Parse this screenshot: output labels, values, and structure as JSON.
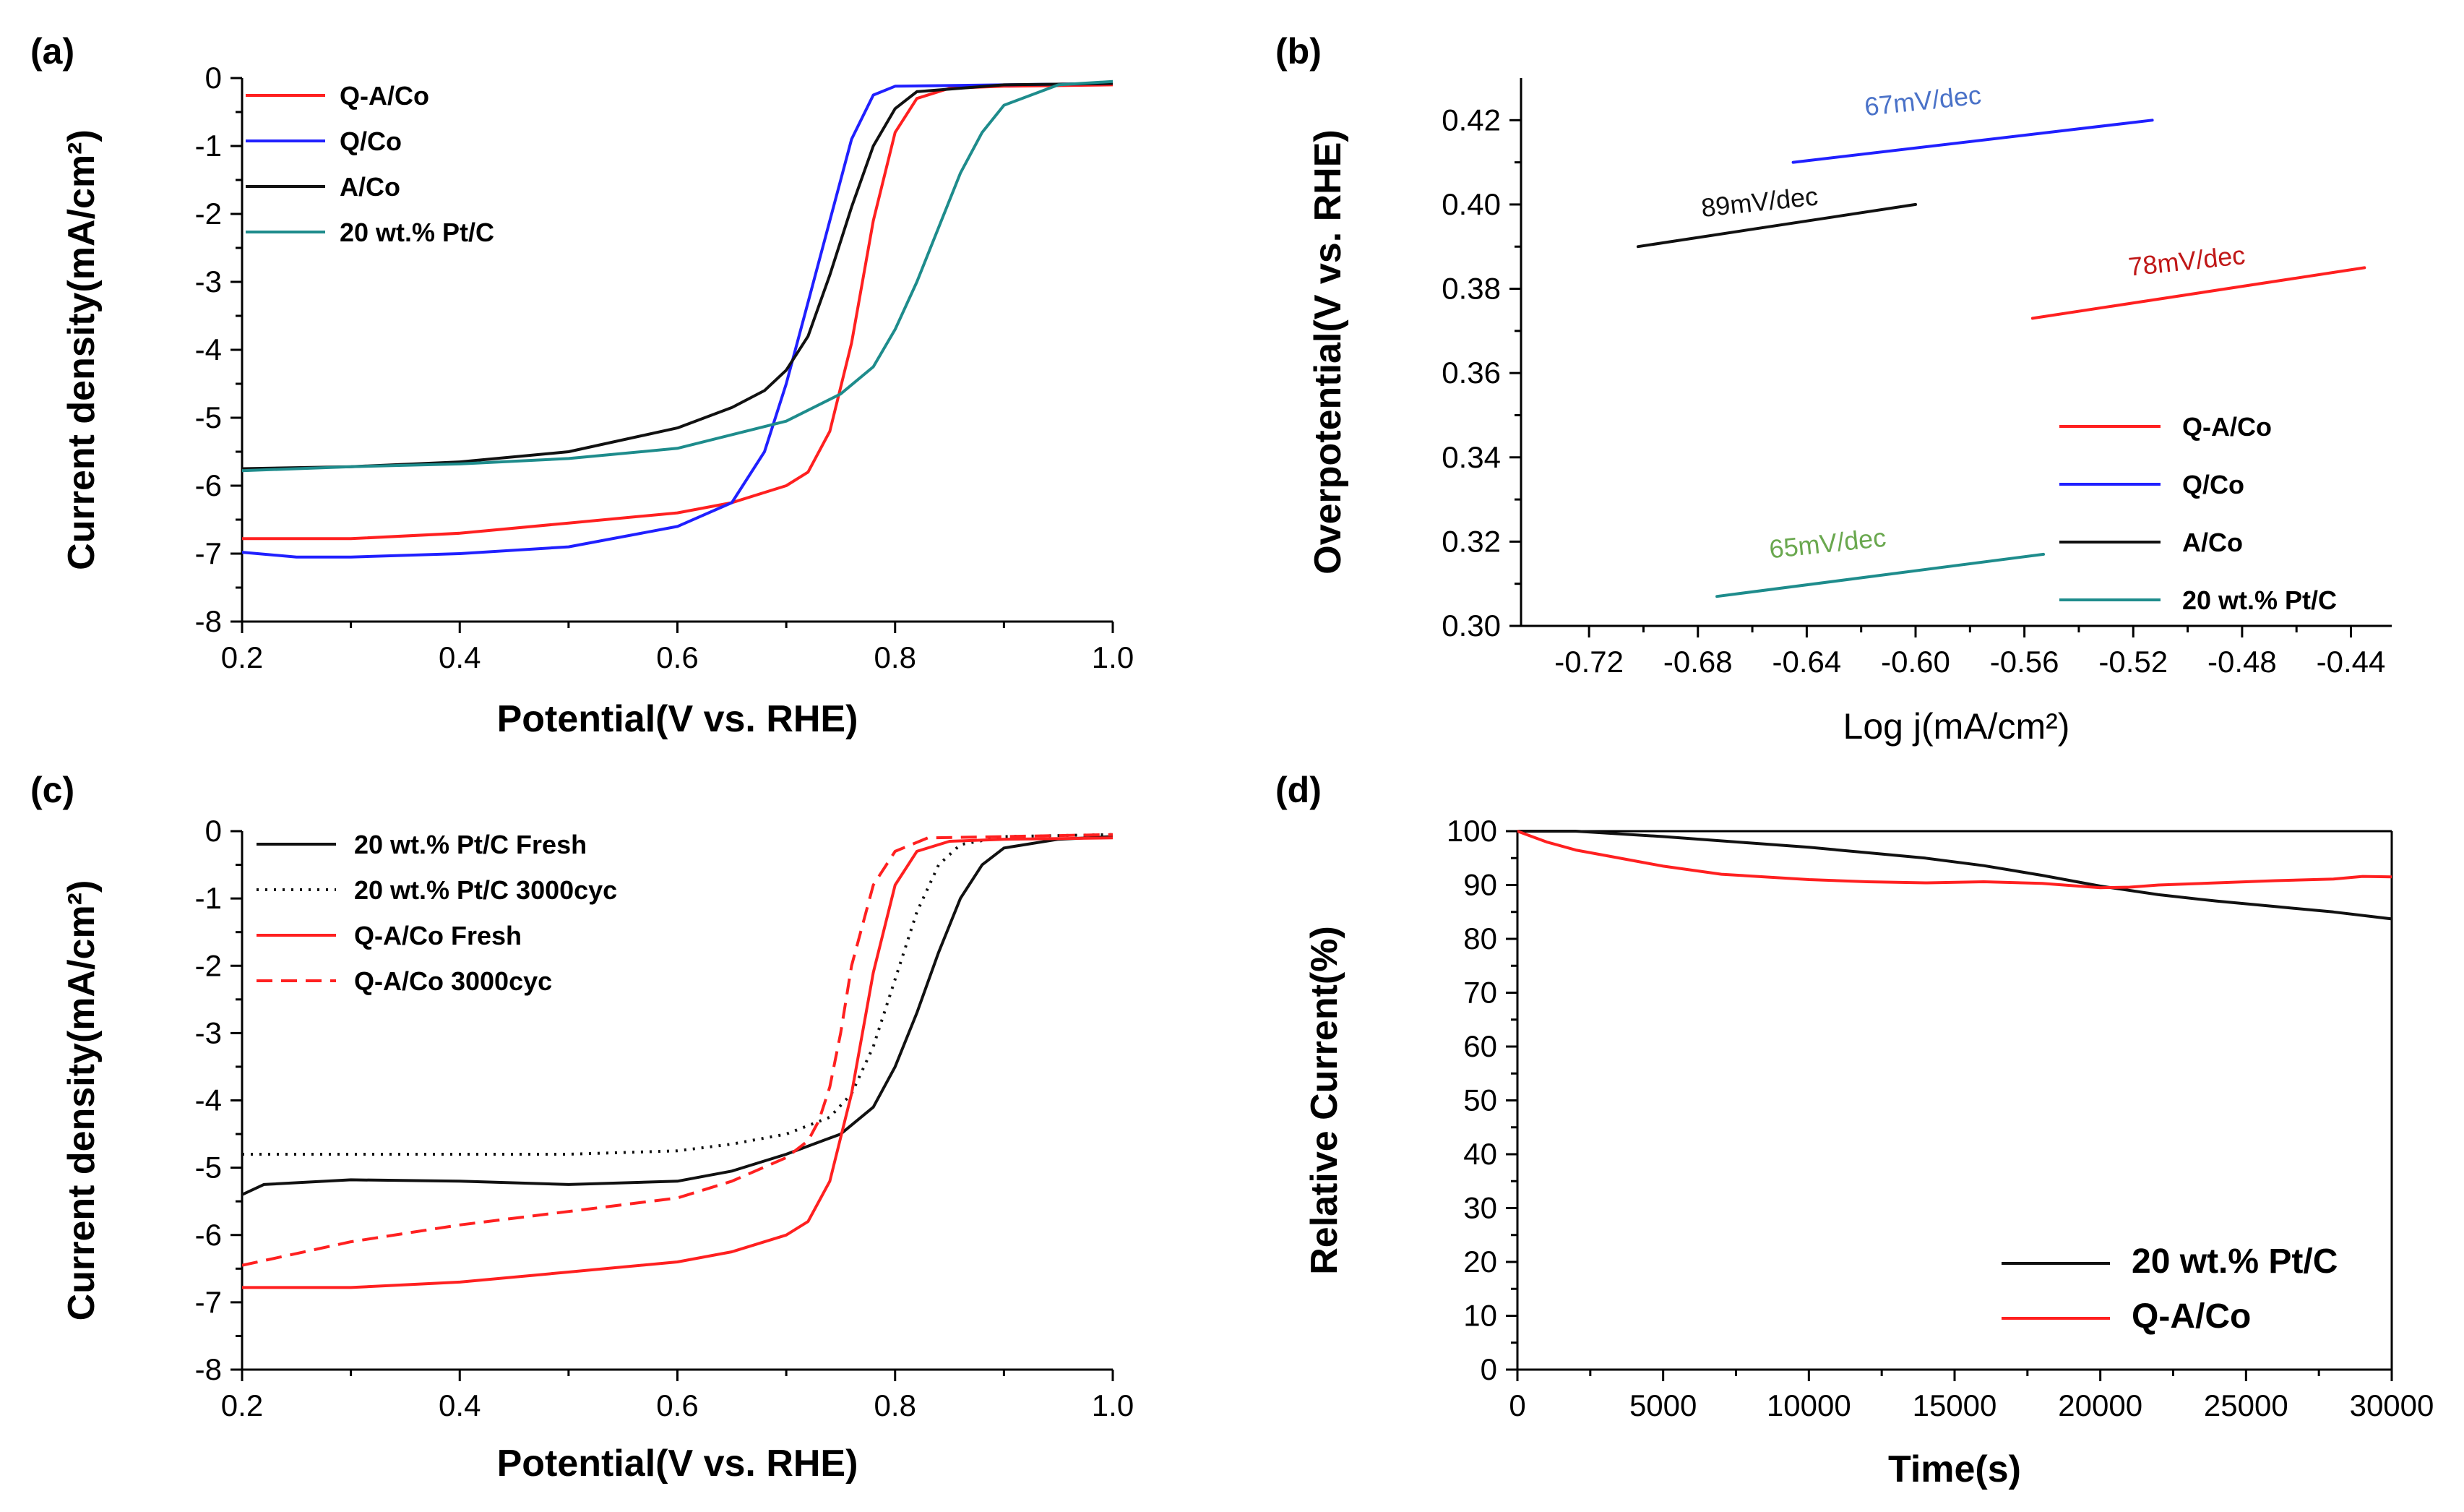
{
  "chart_data": [
    {
      "panel": "(a)",
      "type": "line",
      "xlabel": "Potential(V vs. RHE)",
      "ylabel": "Current density(mA/cm²)",
      "xlim": [
        0.2,
        1.0
      ],
      "ylim": [
        -8,
        0
      ],
      "xticks": [
        "0.2",
        "0.4",
        "0.6",
        "0.8",
        "1.0"
      ],
      "yticks": [
        "0",
        "-1",
        "-2",
        "-3",
        "-4",
        "-5",
        "-6",
        "-7",
        "-8"
      ],
      "legend_position": "top-left",
      "series": [
        {
          "name": "Q-A/Co",
          "color": "#ff2020",
          "dash": "solid",
          "x": [
            0.2,
            0.3,
            0.4,
            0.5,
            0.6,
            0.65,
            0.7,
            0.72,
            0.74,
            0.76,
            0.78,
            0.8,
            0.82,
            0.85,
            0.9,
            1.0
          ],
          "y": [
            -6.78,
            -6.78,
            -6.7,
            -6.55,
            -6.4,
            -6.25,
            -6.0,
            -5.8,
            -5.2,
            -3.9,
            -2.1,
            -0.8,
            -0.3,
            -0.15,
            -0.12,
            -0.1
          ]
        },
        {
          "name": "Q/Co",
          "color": "#2020ff",
          "dash": "solid",
          "x": [
            0.2,
            0.25,
            0.3,
            0.4,
            0.5,
            0.6,
            0.65,
            0.68,
            0.7,
            0.72,
            0.74,
            0.76,
            0.78,
            0.8,
            0.9,
            1.0
          ],
          "y": [
            -6.98,
            -7.05,
            -7.05,
            -7.0,
            -6.9,
            -6.6,
            -6.25,
            -5.5,
            -4.5,
            -3.3,
            -2.1,
            -0.9,
            -0.25,
            -0.12,
            -0.1,
            -0.08
          ]
        },
        {
          "name": "A/Co",
          "color": "#111111",
          "dash": "solid",
          "x": [
            0.2,
            0.3,
            0.4,
            0.5,
            0.6,
            0.65,
            0.68,
            0.7,
            0.72,
            0.74,
            0.76,
            0.78,
            0.8,
            0.82,
            0.9,
            1.0
          ],
          "y": [
            -5.75,
            -5.72,
            -5.65,
            -5.5,
            -5.15,
            -4.85,
            -4.6,
            -4.3,
            -3.8,
            -2.9,
            -1.9,
            -1.0,
            -0.45,
            -0.2,
            -0.1,
            -0.08
          ]
        },
        {
          "name": "20 wt.% Pt/C",
          "color": "#1e8c8c",
          "dash": "solid",
          "x": [
            0.2,
            0.3,
            0.4,
            0.5,
            0.6,
            0.7,
            0.75,
            0.78,
            0.8,
            0.82,
            0.84,
            0.86,
            0.88,
            0.9,
            0.95,
            1.0
          ],
          "y": [
            -5.78,
            -5.72,
            -5.68,
            -5.6,
            -5.45,
            -5.05,
            -4.65,
            -4.25,
            -3.7,
            -3.0,
            -2.2,
            -1.4,
            -0.8,
            -0.4,
            -0.1,
            -0.05
          ]
        }
      ]
    },
    {
      "panel": "(b)",
      "type": "line",
      "xlabel": "Log j(mA/cm²)",
      "ylabel": "Overpotential(V vs. RHE)",
      "xlim": [
        -0.745,
        -0.425
      ],
      "ylim": [
        0.3,
        0.43
      ],
      "xticks": [
        "-0.72",
        "-0.68",
        "-0.64",
        "-0.60",
        "-0.56",
        "-0.52",
        "-0.48",
        "-0.44"
      ],
      "yticks": [
        "0.30",
        "0.32",
        "0.34",
        "0.36",
        "0.38",
        "0.40",
        "0.42"
      ],
      "legend_position": "bottom-right",
      "series": [
        {
          "name": "Q-A/Co",
          "color": "#ff2020",
          "x": [
            -0.557,
            -0.435
          ],
          "y": [
            0.373,
            0.385
          ]
        },
        {
          "name": "Q/Co",
          "color": "#2020ff",
          "x": [
            -0.645,
            -0.513
          ],
          "y": [
            0.41,
            0.42
          ]
        },
        {
          "name": "A/Co",
          "color": "#111111",
          "x": [
            -0.702,
            -0.6
          ],
          "y": [
            0.39,
            0.4
          ]
        },
        {
          "name": "20 wt.% Pt/C",
          "color": "#1e8c8c",
          "x": [
            -0.673,
            -0.553
          ],
          "y": [
            0.307,
            0.317
          ]
        }
      ],
      "annotations": [
        {
          "text": "67mV/dec",
          "color": "#4a72c8",
          "x": -0.597,
          "y": 0.4225
        },
        {
          "text": "89mV/dec",
          "color": "#111111",
          "x": -0.657,
          "y": 0.3985
        },
        {
          "text": "78mV/dec",
          "color": "#c01818",
          "x": -0.5,
          "y": 0.3845
        },
        {
          "text": "65mV/dec",
          "color": "#6aa84f",
          "x": -0.632,
          "y": 0.3175
        }
      ]
    },
    {
      "panel": "(c)",
      "type": "line",
      "xlabel": "Potential(V vs. RHE)",
      "ylabel": "Current density(mA/cm²)",
      "xlim": [
        0.2,
        1.0
      ],
      "ylim": [
        -8,
        0
      ],
      "xticks": [
        "0.2",
        "0.4",
        "0.6",
        "0.8",
        "1.0"
      ],
      "yticks": [
        "0",
        "-1",
        "-2",
        "-3",
        "-4",
        "-5",
        "-6",
        "-7",
        "-8"
      ],
      "legend_position": "top-left",
      "series": [
        {
          "name": "20 wt.% Pt/C Fresh",
          "color": "#111111",
          "dash": "solid",
          "x": [
            0.2,
            0.22,
            0.3,
            0.4,
            0.5,
            0.6,
            0.65,
            0.7,
            0.75,
            0.78,
            0.8,
            0.82,
            0.84,
            0.86,
            0.88,
            0.9,
            0.95,
            1.0
          ],
          "y": [
            -5.4,
            -5.25,
            -5.18,
            -5.2,
            -5.25,
            -5.2,
            -5.05,
            -4.8,
            -4.5,
            -4.1,
            -3.5,
            -2.7,
            -1.8,
            -1.0,
            -0.5,
            -0.25,
            -0.12,
            -0.08
          ]
        },
        {
          "name": "20 wt.% Pt/C 3000cyc",
          "color": "#111111",
          "dash": "dotted",
          "x": [
            0.2,
            0.3,
            0.4,
            0.5,
            0.6,
            0.65,
            0.7,
            0.74,
            0.76,
            0.78,
            0.8,
            0.82,
            0.84,
            0.86,
            0.9,
            1.0
          ],
          "y": [
            -4.8,
            -4.8,
            -4.8,
            -4.8,
            -4.75,
            -4.65,
            -4.5,
            -4.25,
            -3.9,
            -3.2,
            -2.2,
            -1.2,
            -0.5,
            -0.2,
            -0.08,
            -0.05
          ]
        },
        {
          "name": "Q-A/Co Fresh",
          "color": "#ff2020",
          "dash": "solid",
          "x": [
            0.2,
            0.3,
            0.4,
            0.5,
            0.6,
            0.65,
            0.7,
            0.72,
            0.74,
            0.76,
            0.78,
            0.8,
            0.82,
            0.85,
            0.9,
            1.0
          ],
          "y": [
            -6.78,
            -6.78,
            -6.7,
            -6.55,
            -6.4,
            -6.25,
            -6.0,
            -5.8,
            -5.2,
            -3.9,
            -2.1,
            -0.8,
            -0.3,
            -0.15,
            -0.12,
            -0.1
          ]
        },
        {
          "name": "Q-A/Co 3000cyc",
          "color": "#ff2020",
          "dash": "dashed",
          "x": [
            0.2,
            0.3,
            0.4,
            0.5,
            0.6,
            0.65,
            0.7,
            0.72,
            0.73,
            0.74,
            0.75,
            0.76,
            0.78,
            0.8,
            0.83,
            0.9,
            1.0
          ],
          "y": [
            -6.45,
            -6.1,
            -5.85,
            -5.65,
            -5.45,
            -5.2,
            -4.85,
            -4.6,
            -4.3,
            -3.8,
            -3.0,
            -2.0,
            -0.8,
            -0.3,
            -0.1,
            -0.08,
            -0.05
          ]
        }
      ]
    },
    {
      "panel": "(d)",
      "type": "line",
      "xlabel": "Time(s)",
      "ylabel": "Relative Current(%)",
      "xlim": [
        0,
        30000
      ],
      "ylim": [
        0,
        100
      ],
      "xticks": [
        "0",
        "5000",
        "10000",
        "15000",
        "20000",
        "25000",
        "30000"
      ],
      "yticks": [
        "0",
        "10",
        "20",
        "30",
        "40",
        "50",
        "60",
        "70",
        "80",
        "90",
        "100"
      ],
      "legend_position": "bottom-right",
      "series": [
        {
          "name": "20 wt.% Pt/C",
          "color": "#111111",
          "x": [
            0,
            2000,
            5000,
            8000,
            10000,
            12000,
            14000,
            16000,
            18000,
            20000,
            22000,
            24000,
            26000,
            28000,
            30000
          ],
          "y": [
            100,
            100,
            99,
            97.8,
            97,
            96,
            95,
            93.6,
            91.8,
            89.8,
            88.2,
            87,
            86,
            85,
            83.7
          ]
        },
        {
          "name": "Q-A/Co",
          "color": "#ff2020",
          "x": [
            0,
            500,
            1000,
            2000,
            3000,
            5000,
            7000,
            10000,
            12000,
            14000,
            16000,
            18000,
            20000,
            21000,
            22000,
            24000,
            26000,
            28000,
            29000,
            30000
          ],
          "y": [
            100,
            99,
            98,
            96.5,
            95.5,
            93.5,
            92,
            91,
            90.6,
            90.4,
            90.6,
            90.3,
            89.5,
            89.6,
            90.0,
            90.4,
            90.8,
            91.1,
            91.6,
            91.5
          ]
        }
      ]
    }
  ]
}
